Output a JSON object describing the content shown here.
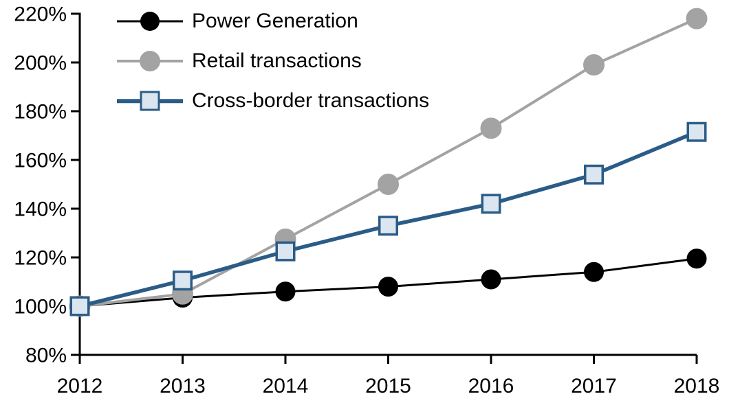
{
  "chart_data": {
    "type": "line",
    "title": "",
    "xlabel": "",
    "ylabel": "",
    "x_labels": [
      "2012",
      "2013",
      "2014",
      "2015",
      "2016",
      "2017",
      "2018"
    ],
    "ylim": [
      80,
      220
    ],
    "y_tick_step": 20,
    "y_tick_labels": [
      "80%",
      "100%",
      "120%",
      "140%",
      "160%",
      "180%",
      "200%",
      "220%"
    ],
    "grid": false,
    "legend_position": "top-left",
    "axis_color": "#000000",
    "background_color": "#ffffff",
    "series": [
      {
        "name": "Power Generation",
        "color": "#000000",
        "line_width": 3,
        "marker": "circle",
        "marker_fill": "#000000",
        "marker_stroke": "#000000",
        "marker_size": 28,
        "values": [
          100,
          103.5,
          106,
          108,
          111,
          114,
          119.5
        ]
      },
      {
        "name": "Retail transactions",
        "color": "#a3a3a3",
        "line_width": 4,
        "marker": "circle",
        "marker_fill": "#a3a3a3",
        "marker_stroke": "#a3a3a3",
        "marker_size": 30,
        "values": [
          100,
          105,
          127.5,
          150,
          173,
          199,
          218
        ]
      },
      {
        "name": "Cross-border transactions",
        "color": "#2b5c87",
        "line_width": 5.5,
        "marker": "square",
        "marker_fill": "#dce6f1",
        "marker_stroke": "#2b5c87",
        "marker_size": 29,
        "values": [
          100,
          110.5,
          122.5,
          133,
          142,
          154,
          171.5
        ]
      }
    ]
  }
}
